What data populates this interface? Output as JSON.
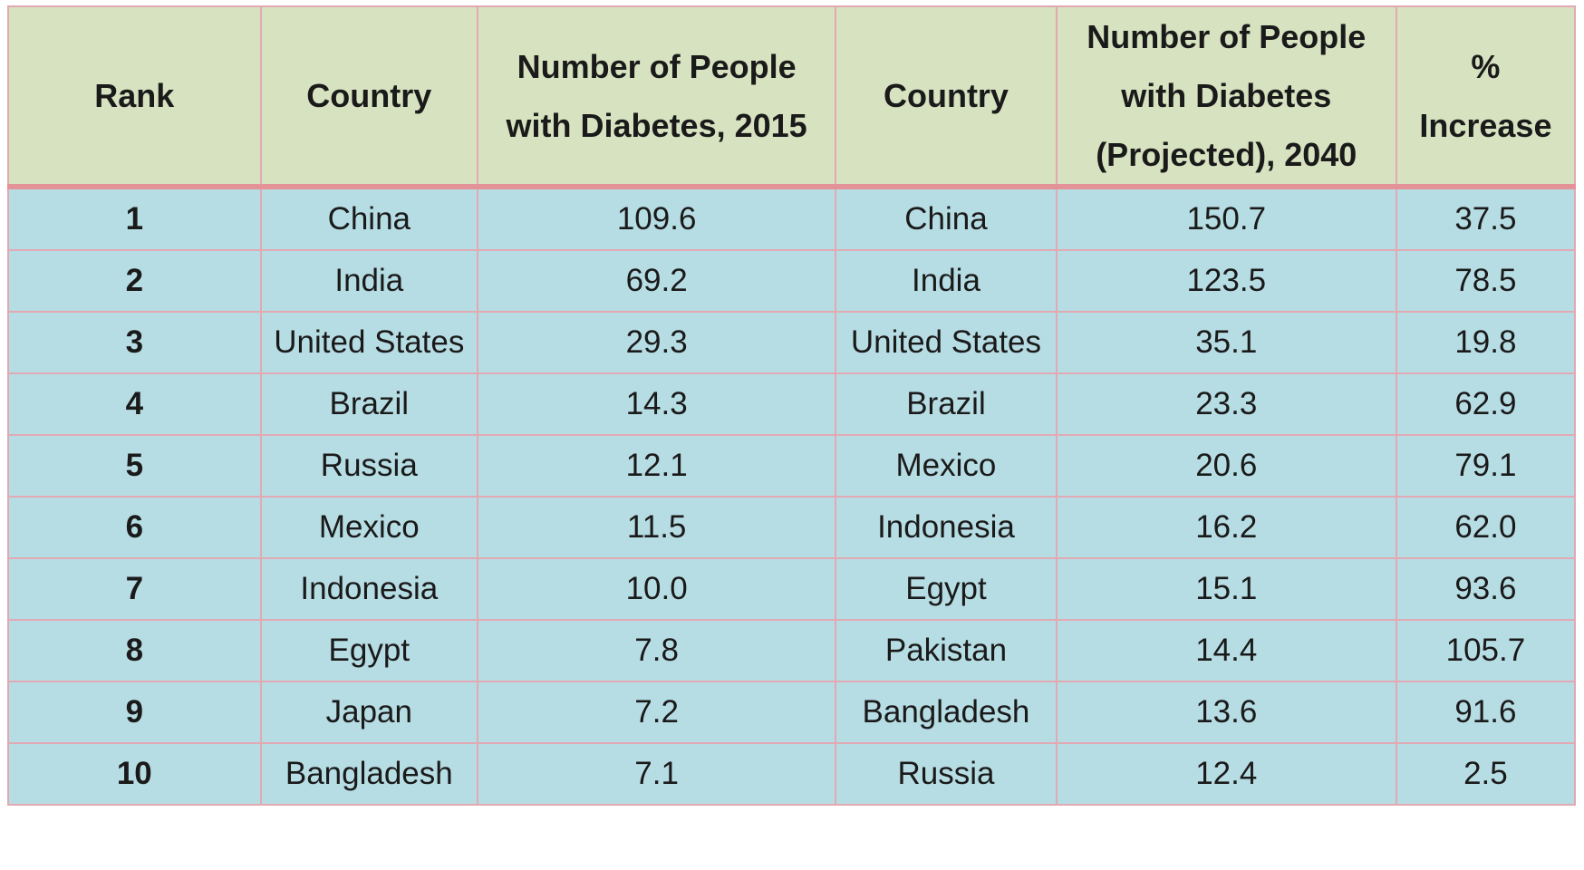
{
  "chart_data": {
    "type": "table",
    "columns": [
      "Rank",
      "Country",
      "Number of People with Diabetes, 2015",
      "Country",
      "Number of People with Diabetes (Projected), 2040",
      "% Increase"
    ],
    "rows": [
      [
        "1",
        "China",
        "109.6",
        "China",
        "150.7",
        "37.5"
      ],
      [
        "2",
        "India",
        "69.2",
        "India",
        "123.5",
        "78.5"
      ],
      [
        "3",
        "United States",
        "29.3",
        "United States",
        "35.1",
        "19.8"
      ],
      [
        "4",
        "Brazil",
        "14.3",
        "Brazil",
        "23.3",
        "62.9"
      ],
      [
        "5",
        "Russia",
        "12.1",
        "Mexico",
        "20.6",
        "79.1"
      ],
      [
        "6",
        "Mexico",
        "11.5",
        "Indonesia",
        "16.2",
        "62.0"
      ],
      [
        "7",
        "Indonesia",
        "10.0",
        "Egypt",
        "15.1",
        "93.6"
      ],
      [
        "8",
        "Egypt",
        "7.8",
        "Pakistan",
        "14.4",
        "105.7"
      ],
      [
        "9",
        "Japan",
        "7.2",
        "Bangladesh",
        "13.6",
        "91.6"
      ],
      [
        "10",
        "Bangladesh",
        "7.1",
        "Russia",
        "12.4",
        "2.5"
      ]
    ]
  },
  "colors": {
    "header_background": "#d7e2c0",
    "body_background": "#b7dde4",
    "border": "#e2a9b3",
    "header_separator": "#e39297"
  }
}
